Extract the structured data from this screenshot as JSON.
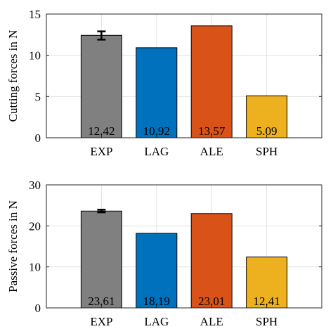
{
  "chart_data": [
    {
      "type": "bar",
      "categories": [
        "EXP",
        "LAG",
        "ALE",
        "SPH"
      ],
      "values": [
        12.42,
        10.92,
        13.57,
        5.09
      ],
      "value_labels": [
        "12.42",
        "10.92",
        "13.57",
        "5.09"
      ],
      "colors": [
        "#808080",
        "#0072bd",
        "#d95319",
        "#edb120"
      ],
      "error": {
        "category": "EXP",
        "low": 11.9,
        "high": 12.9
      },
      "ylabel": "Cutting forces in N",
      "ylim": [
        0,
        15
      ],
      "yticks": [
        0,
        5,
        10,
        15
      ],
      "grid": true
    },
    {
      "type": "bar",
      "categories": [
        "EXP",
        "LAG",
        "ALE",
        "SPH"
      ],
      "values": [
        23.61,
        18.19,
        23.01,
        12.41
      ],
      "value_labels": [
        "23.61",
        "18.19",
        "23.01",
        "12.41"
      ],
      "colors": [
        "#808080",
        "#0072bd",
        "#d95319",
        "#edb120"
      ],
      "error": {
        "category": "EXP",
        "low": 23.3,
        "high": 23.95
      },
      "ylabel": "Passive forces in N",
      "ylim": [
        0,
        30
      ],
      "yticks": [
        0,
        10,
        20,
        30
      ],
      "grid": true
    }
  ]
}
